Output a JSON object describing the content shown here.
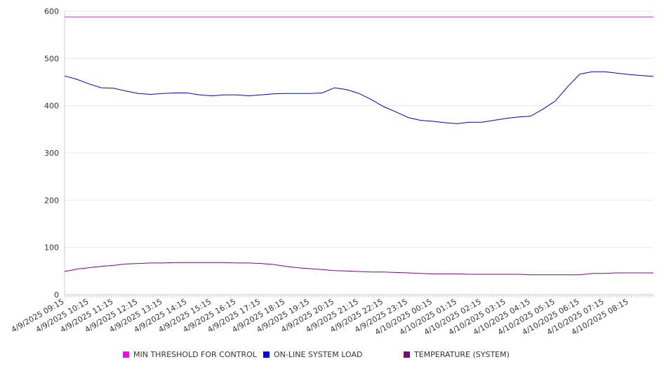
{
  "chart_data": {
    "type": "line",
    "title": "",
    "xlabel": "",
    "ylabel": "",
    "ylim": [
      0,
      600
    ],
    "yticks": [
      0,
      100,
      200,
      300,
      400,
      500,
      600
    ],
    "grid": true,
    "legend_position": "bottom",
    "x_tick_labels": [
      "4/9/2025 09:15",
      "4/9/2025 10:15",
      "4/9/2025 11:15",
      "4/9/2025 12:15",
      "4/9/2025 13:15",
      "4/9/2025 14:15",
      "4/9/2025 15:15",
      "4/9/2025 16:15",
      "4/9/2025 17:15",
      "4/9/2025 18:15",
      "4/9/2025 19:15",
      "4/9/2025 20:15",
      "4/9/2025 21:15",
      "4/9/2025 22:15",
      "4/9/2025 23:15",
      "4/10/2025 00:15",
      "4/10/2025 01:15",
      "4/10/2025 02:15",
      "4/10/2025 03:15",
      "4/10/2025 04:15",
      "4/10/2025 05:15",
      "4/10/2025 06:15",
      "4/10/2025 07:15",
      "4/10/2025 08:15"
    ],
    "x": [
      "4/9/2025 09:15",
      "4/9/2025 09:45",
      "4/9/2025 10:15",
      "4/9/2025 10:45",
      "4/9/2025 11:15",
      "4/9/2025 11:45",
      "4/9/2025 12:15",
      "4/9/2025 12:45",
      "4/9/2025 13:15",
      "4/9/2025 13:45",
      "4/9/2025 14:15",
      "4/9/2025 14:45",
      "4/9/2025 15:15",
      "4/9/2025 15:45",
      "4/9/2025 16:15",
      "4/9/2025 16:45",
      "4/9/2025 17:15",
      "4/9/2025 17:45",
      "4/9/2025 18:15",
      "4/9/2025 18:45",
      "4/9/2025 19:15",
      "4/9/2025 19:45",
      "4/9/2025 20:15",
      "4/9/2025 20:45",
      "4/9/2025 21:15",
      "4/9/2025 21:45",
      "4/9/2025 22:15",
      "4/9/2025 22:45",
      "4/9/2025 23:15",
      "4/9/2025 23:45",
      "4/10/2025 00:15",
      "4/10/2025 00:45",
      "4/10/2025 01:15",
      "4/10/2025 01:45",
      "4/10/2025 02:15",
      "4/10/2025 02:45",
      "4/10/2025 03:15",
      "4/10/2025 03:45",
      "4/10/2025 04:15",
      "4/10/2025 04:45",
      "4/10/2025 05:15",
      "4/10/2025 05:45",
      "4/10/2025 06:15",
      "4/10/2025 06:45",
      "4/10/2025 07:15",
      "4/10/2025 07:45",
      "4/10/2025 08:15",
      "4/10/2025 08:45",
      "4/10/2025 09:15"
    ],
    "series": [
      {
        "name": "MIN THRESHOLD FOR CONTROL",
        "color": "#cc33cc",
        "legend_color": "#ff00ff",
        "values": [
          588,
          588,
          588,
          588,
          588,
          588,
          588,
          588,
          588,
          588,
          588,
          588,
          588,
          588,
          588,
          588,
          588,
          588,
          588,
          588,
          588,
          588,
          588,
          588,
          588,
          588,
          588,
          588,
          588,
          588,
          588,
          588,
          588,
          588,
          588,
          588,
          588,
          588,
          588,
          588,
          588,
          588,
          588,
          588,
          588,
          588,
          588,
          588,
          588
        ]
      },
      {
        "name": "ON-LINE SYSTEM LOAD",
        "color": "#0000cc",
        "legend_color": "#0000ff",
        "values": [
          463,
          456,
          446,
          438,
          437,
          431,
          426,
          424,
          426,
          427,
          427,
          423,
          421,
          423,
          423,
          421,
          423,
          425,
          426,
          426,
          426,
          427,
          438,
          434,
          426,
          413,
          398,
          387,
          375,
          369,
          367,
          364,
          362,
          365,
          365,
          369,
          373,
          376,
          378,
          393,
          410,
          440,
          467,
          472,
          472,
          469,
          466,
          464,
          462
        ]
      },
      {
        "name": "TEMPERATURE (SYSTEM)",
        "color": "#800080",
        "legend_color": "#800080",
        "values": [
          49,
          54,
          57,
          60,
          62,
          65,
          66,
          67,
          67,
          68,
          68,
          68,
          68,
          68,
          67,
          67,
          66,
          64,
          60,
          57,
          55,
          53,
          51,
          50,
          49,
          48,
          48,
          47,
          46,
          45,
          44,
          44,
          44,
          43,
          43,
          43,
          43,
          43,
          42,
          42,
          42,
          42,
          42,
          45,
          45,
          46,
          46,
          46,
          46
        ]
      }
    ]
  }
}
